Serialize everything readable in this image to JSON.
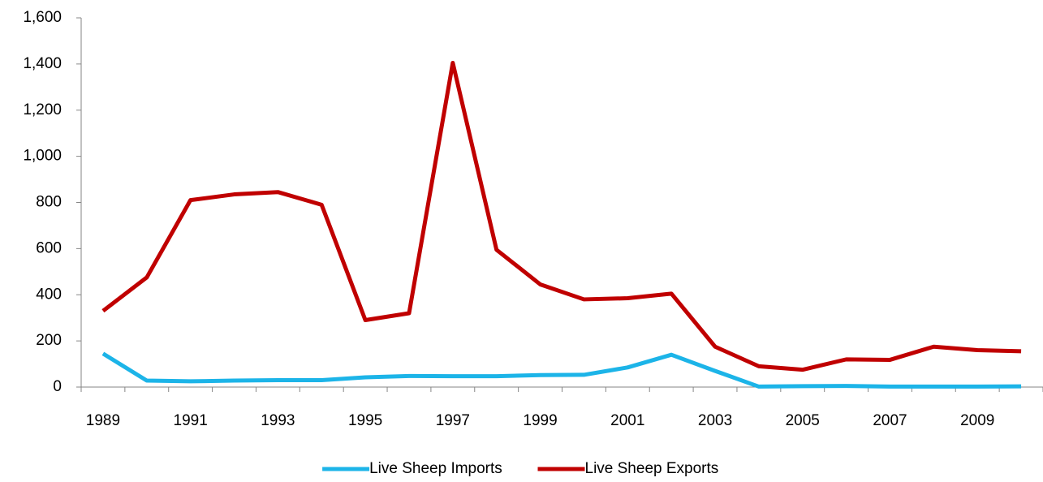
{
  "chart_data": {
    "type": "line",
    "categories": [
      "1989",
      null,
      "1991",
      null,
      "1993",
      null,
      "1995",
      null,
      "1997",
      null,
      "1999",
      null,
      "2001",
      null,
      "2003",
      null,
      "2005",
      null,
      "2007",
      null,
      "2009",
      null
    ],
    "series": [
      {
        "name": "Live Sheep Imports",
        "color": "#1cb4e8",
        "values": [
          145,
          28,
          25,
          28,
          30,
          30,
          42,
          48,
          47,
          47,
          52,
          53,
          85,
          140,
          70,
          2,
          4,
          5,
          2,
          2,
          2,
          3
        ]
      },
      {
        "name": "Live Sheep Exports",
        "color": "#c00000",
        "values": [
          330,
          475,
          810,
          835,
          845,
          790,
          290,
          320,
          1405,
          595,
          445,
          380,
          385,
          405,
          175,
          90,
          75,
          120,
          118,
          175,
          160,
          155
        ]
      }
    ],
    "ylim": [
      0,
      1600
    ],
    "yticks": [
      0,
      200,
      400,
      600,
      800,
      {
        "value": 1000,
        "label": "1,000"
      },
      {
        "value": 1200,
        "label": "1,200"
      },
      {
        "value": 1400,
        "label": "1,400"
      },
      {
        "value": 1600,
        "label": "1,600"
      }
    ],
    "grid": false,
    "legend": "bottom"
  }
}
